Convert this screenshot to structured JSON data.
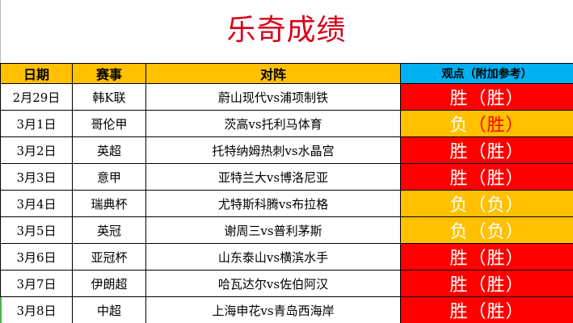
{
  "title": "乐奇成绩",
  "headers": {
    "date": "日期",
    "event": "赛事",
    "match": "对阵",
    "view": "观点（附加参考）"
  },
  "rows": [
    {
      "date": "2月29日",
      "event": "韩K联",
      "match": "蔚山现代vs浦项制铁",
      "view_main": "胜",
      "view_paren": "（胜）",
      "style": "win"
    },
    {
      "date": "3月1日",
      "event": "哥伦甲",
      "match": "茨高vs托利马体育",
      "view_main": "负",
      "view_paren": "（胜）",
      "style": "mixed"
    },
    {
      "date": "3月2日",
      "event": "英超",
      "match": "托特纳姆热刺vs水晶宫",
      "view_main": "胜",
      "view_paren": "（胜）",
      "style": "win"
    },
    {
      "date": "3月3日",
      "event": "意甲",
      "match": "亚特兰大vs博洛尼亚",
      "view_main": "胜",
      "view_paren": "（胜）",
      "style": "win"
    },
    {
      "date": "3月4日",
      "event": "瑞典杯",
      "match": "尤特斯科腾vs布拉格",
      "view_main": "负",
      "view_paren": "（负）",
      "style": "lose"
    },
    {
      "date": "3月5日",
      "event": "英冠",
      "match": "谢周三vs普利茅斯",
      "view_main": "负",
      "view_paren": "（负）",
      "style": "lose"
    },
    {
      "date": "3月6日",
      "event": "亚冠杯",
      "match": "山东泰山vs横滨水手",
      "view_main": "胜",
      "view_paren": "（胜）",
      "style": "win"
    },
    {
      "date": "3月7日",
      "event": "伊朗超",
      "match": "哈瓦达尔vs佐伯阿汉",
      "view_main": "胜",
      "view_paren": "（胜）",
      "style": "win"
    },
    {
      "date": "3月8日",
      "event": "中超",
      "match": "上海申花vs青岛西海岸",
      "view_main": "胜",
      "view_paren": "（胜）",
      "style": "win"
    }
  ],
  "colors": {
    "title": "#d8001a",
    "header_bg": "#ffc000",
    "view_header_bg": "#00b0f0",
    "win_bg": "#ff0000",
    "lose_bg": "#ffc000"
  }
}
